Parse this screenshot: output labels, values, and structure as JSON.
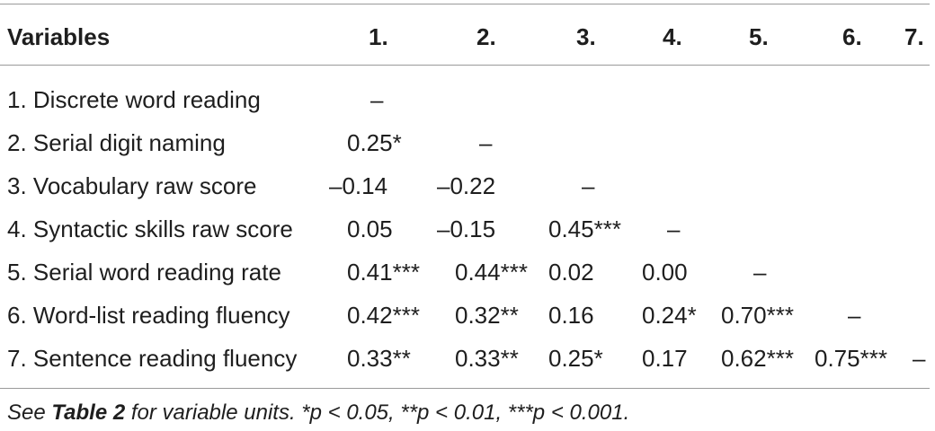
{
  "table": {
    "header": [
      "Variables",
      "1.",
      "2.",
      "3.",
      "4.",
      "5.",
      "6.",
      "7."
    ],
    "rows": [
      {
        "label": "1. Discrete word reading",
        "cells": [
          "–",
          "",
          "",
          "",
          "",
          "",
          ""
        ]
      },
      {
        "label": "2. Serial digit naming",
        "cells": [
          "0.25*",
          "–",
          "",
          "",
          "",
          "",
          ""
        ]
      },
      {
        "label": "3. Vocabulary raw score",
        "cells": [
          "–0.14",
          "–0.22",
          "–",
          "",
          "",
          "",
          ""
        ]
      },
      {
        "label": "4. Syntactic skills raw score",
        "cells": [
          "0.05",
          "–0.15",
          "0.45***",
          "–",
          "",
          "",
          ""
        ]
      },
      {
        "label": "5. Serial word reading rate",
        "cells": [
          "0.41***",
          "0.44***",
          "0.02",
          "0.00",
          "–",
          "",
          ""
        ]
      },
      {
        "label": "6. Word-list reading fluency",
        "cells": [
          "0.42***",
          "0.32**",
          "0.16",
          "0.24*",
          "0.70***",
          "–",
          ""
        ]
      },
      {
        "label": "7. Sentence reading fluency",
        "cells": [
          "0.33**",
          "0.33**",
          "0.25*",
          "0.17",
          "0.62***",
          "0.75***",
          "–"
        ]
      }
    ]
  },
  "footnote": {
    "prefix": "See ",
    "bold": "Table 2",
    "suffix": " for variable units. *p < 0.05, **p < 0.01, ***p < 0.001."
  }
}
